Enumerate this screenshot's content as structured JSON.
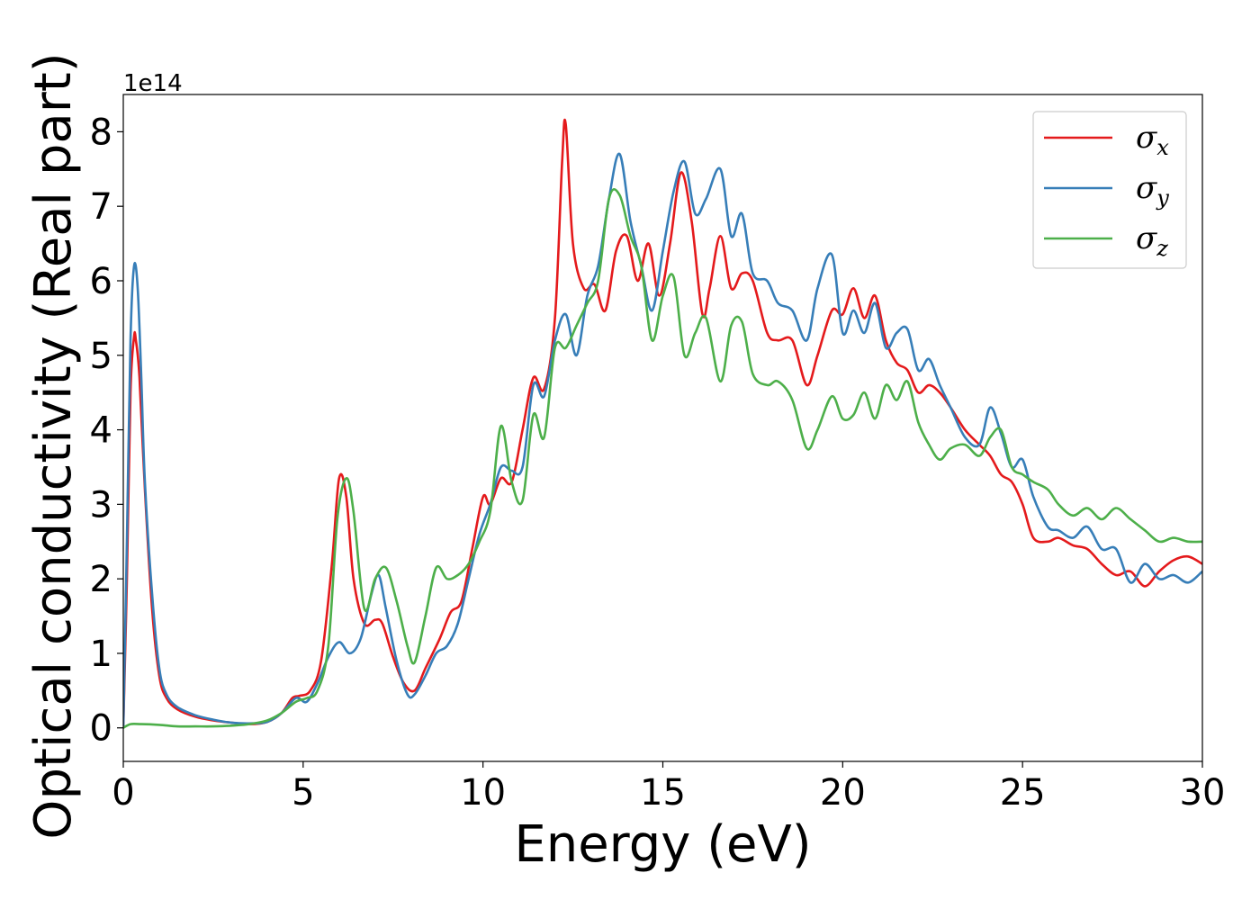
{
  "chart_data": {
    "type": "line",
    "xlabel": "Energy (eV)",
    "ylabel": "Optical conductivity (Real part)",
    "y_offset_label": "1e14",
    "xlim": [
      0,
      30
    ],
    "ylim": [
      -0.45,
      8.5
    ],
    "y_scale_multiplier": 100000000000000.0,
    "xticks": [
      0,
      5,
      10,
      15,
      20,
      25,
      30
    ],
    "xtick_labels": [
      "0",
      "5",
      "10",
      "15",
      "20",
      "25",
      "30"
    ],
    "yticks": [
      0,
      1,
      2,
      3,
      4,
      5,
      6,
      7,
      8
    ],
    "ytick_labels": [
      "0",
      "1",
      "2",
      "3",
      "4",
      "5",
      "6",
      "7",
      "8"
    ],
    "grid": false,
    "legend_position": "top-right",
    "series": [
      {
        "name": "σx",
        "symbol": "σ",
        "subscript": "x",
        "color": "#e41a1c",
        "x": [
          0,
          0.1,
          0.2,
          0.3,
          0.35,
          0.45,
          0.6,
          0.8,
          1.0,
          1.2,
          1.5,
          2.0,
          2.5,
          3.0,
          3.5,
          4.0,
          4.4,
          4.7,
          4.9,
          5.2,
          5.5,
          5.8,
          6.0,
          6.2,
          6.4,
          6.7,
          7.0,
          7.2,
          7.5,
          7.8,
          8.1,
          8.4,
          8.8,
          9.1,
          9.4,
          9.7,
          10.0,
          10.2,
          10.5,
          10.8,
          11.1,
          11.4,
          11.7,
          12.0,
          12.2,
          12.3,
          12.5,
          12.8,
          13.1,
          13.4,
          13.7,
          14.0,
          14.3,
          14.6,
          14.9,
          15.2,
          15.5,
          15.8,
          16.1,
          16.3,
          16.6,
          16.9,
          17.2,
          17.5,
          17.9,
          18.2,
          18.6,
          19.0,
          19.3,
          19.7,
          20.0,
          20.3,
          20.6,
          20.9,
          21.2,
          21.5,
          21.8,
          22.1,
          22.4,
          22.7,
          23.0,
          23.4,
          23.8,
          24.1,
          24.4,
          24.7,
          25.0,
          25.3,
          25.7,
          26.0,
          26.4,
          26.8,
          27.2,
          27.6,
          28.0,
          28.4,
          28.8,
          29.2,
          29.6,
          30.0
        ],
        "y": [
          0,
          2.0,
          4.5,
          5.25,
          5.2,
          4.7,
          3.2,
          1.6,
          0.7,
          0.4,
          0.25,
          0.15,
          0.1,
          0.07,
          0.05,
          0.08,
          0.2,
          0.4,
          0.43,
          0.5,
          0.9,
          2.2,
          3.35,
          3.1,
          2.0,
          1.4,
          1.45,
          1.4,
          0.95,
          0.6,
          0.5,
          0.8,
          1.2,
          1.55,
          1.7,
          2.4,
          3.1,
          3.0,
          3.35,
          3.3,
          4.0,
          4.7,
          4.55,
          5.5,
          7.6,
          8.1,
          6.5,
          5.9,
          5.95,
          5.6,
          6.4,
          6.6,
          6.0,
          6.5,
          5.8,
          6.5,
          7.45,
          6.8,
          5.55,
          5.9,
          6.6,
          5.9,
          6.1,
          6.0,
          5.3,
          5.2,
          5.2,
          4.6,
          5.0,
          5.6,
          5.55,
          5.9,
          5.5,
          5.8,
          5.2,
          4.9,
          4.8,
          4.5,
          4.6,
          4.5,
          4.3,
          4.0,
          3.8,
          3.65,
          3.4,
          3.3,
          3.0,
          2.55,
          2.5,
          2.55,
          2.45,
          2.4,
          2.2,
          2.05,
          2.1,
          1.9,
          2.1,
          2.25,
          2.3,
          2.2
        ]
      },
      {
        "name": "σy",
        "symbol": "σ",
        "subscript": "y",
        "color": "#377eb8",
        "x": [
          0,
          0.1,
          0.2,
          0.3,
          0.4,
          0.5,
          0.6,
          0.8,
          1.0,
          1.2,
          1.5,
          2.0,
          2.5,
          3.0,
          3.5,
          4.0,
          4.4,
          4.8,
          5.1,
          5.4,
          5.7,
          6.0,
          6.3,
          6.6,
          6.9,
          7.1,
          7.3,
          7.6,
          7.9,
          8.1,
          8.4,
          8.7,
          9.0,
          9.3,
          9.6,
          9.9,
          10.2,
          10.5,
          10.8,
          11.1,
          11.4,
          11.7,
          12.0,
          12.3,
          12.6,
          12.9,
          13.2,
          13.5,
          13.8,
          14.1,
          14.4,
          14.7,
          15.0,
          15.3,
          15.6,
          15.9,
          16.2,
          16.6,
          16.9,
          17.2,
          17.5,
          17.9,
          18.2,
          18.6,
          19.0,
          19.3,
          19.7,
          20.0,
          20.3,
          20.6,
          20.9,
          21.2,
          21.5,
          21.8,
          22.1,
          22.4,
          22.7,
          23.0,
          23.4,
          23.8,
          24.1,
          24.4,
          24.7,
          25.0,
          25.3,
          25.7,
          26.0,
          26.4,
          26.8,
          27.2,
          27.6,
          28.0,
          28.4,
          28.8,
          29.2,
          29.6,
          30.0
        ],
        "y": [
          0,
          2.5,
          5.2,
          6.2,
          5.9,
          4.7,
          3.3,
          1.8,
          0.8,
          0.45,
          0.28,
          0.17,
          0.11,
          0.07,
          0.06,
          0.08,
          0.2,
          0.4,
          0.35,
          0.6,
          0.95,
          1.15,
          1.0,
          1.2,
          1.8,
          2.05,
          1.6,
          0.9,
          0.45,
          0.45,
          0.7,
          1.0,
          1.1,
          1.4,
          2.0,
          2.6,
          3.0,
          3.5,
          3.45,
          3.5,
          4.6,
          4.45,
          5.2,
          5.55,
          5.0,
          5.8,
          6.2,
          7.1,
          7.7,
          6.8,
          6.2,
          5.6,
          6.4,
          7.2,
          7.6,
          6.9,
          7.1,
          7.5,
          6.6,
          6.9,
          6.1,
          6.0,
          5.7,
          5.6,
          5.2,
          5.9,
          6.35,
          5.3,
          5.6,
          5.3,
          5.7,
          5.1,
          5.3,
          5.35,
          4.8,
          4.95,
          4.6,
          4.3,
          3.9,
          3.8,
          4.3,
          3.95,
          3.5,
          3.6,
          3.1,
          2.7,
          2.65,
          2.55,
          2.7,
          2.4,
          2.4,
          1.95,
          2.2,
          2.0,
          2.05,
          1.95,
          2.1
        ]
      },
      {
        "name": "σz",
        "symbol": "σ",
        "subscript": "z",
        "color": "#4daf4a",
        "x": [
          0,
          0.2,
          0.5,
          1.0,
          1.5,
          2.0,
          2.5,
          3.0,
          3.5,
          4.0,
          4.4,
          4.8,
          5.1,
          5.4,
          5.7,
          5.95,
          6.2,
          6.4,
          6.7,
          7.0,
          7.3,
          7.6,
          7.9,
          8.1,
          8.4,
          8.7,
          9.0,
          9.3,
          9.6,
          9.9,
          10.2,
          10.5,
          10.8,
          11.1,
          11.4,
          11.7,
          12.0,
          12.3,
          12.6,
          12.9,
          13.2,
          13.5,
          13.8,
          14.1,
          14.4,
          14.7,
          15.0,
          15.3,
          15.6,
          15.9,
          16.2,
          16.6,
          16.9,
          17.2,
          17.5,
          17.9,
          18.2,
          18.6,
          19.0,
          19.3,
          19.7,
          20.0,
          20.3,
          20.6,
          20.9,
          21.2,
          21.5,
          21.8,
          22.1,
          22.4,
          22.7,
          23.0,
          23.4,
          23.8,
          24.1,
          24.4,
          24.7,
          25.0,
          25.3,
          25.7,
          26.0,
          26.4,
          26.8,
          27.2,
          27.6,
          28.0,
          28.4,
          28.8,
          29.2,
          29.6,
          30.0
        ],
        "y": [
          0,
          0.05,
          0.05,
          0.04,
          0.02,
          0.02,
          0.02,
          0.03,
          0.05,
          0.1,
          0.2,
          0.35,
          0.4,
          0.5,
          1.1,
          2.8,
          3.35,
          2.9,
          1.6,
          2.0,
          2.15,
          1.7,
          1.1,
          0.88,
          1.5,
          2.15,
          2.0,
          2.05,
          2.2,
          2.5,
          2.9,
          4.05,
          3.3,
          3.05,
          4.2,
          3.9,
          5.1,
          5.1,
          5.4,
          5.7,
          6.0,
          7.1,
          7.15,
          6.6,
          6.2,
          5.2,
          5.8,
          6.05,
          5.0,
          5.3,
          5.5,
          4.65,
          5.4,
          5.45,
          4.75,
          4.6,
          4.65,
          4.4,
          3.75,
          4.0,
          4.45,
          4.15,
          4.2,
          4.5,
          4.15,
          4.6,
          4.4,
          4.65,
          4.1,
          3.8,
          3.6,
          3.75,
          3.8,
          3.65,
          3.9,
          4.0,
          3.5,
          3.4,
          3.3,
          3.2,
          3.0,
          2.85,
          2.95,
          2.8,
          2.95,
          2.8,
          2.65,
          2.5,
          2.55,
          2.5,
          2.5
        ]
      }
    ]
  }
}
